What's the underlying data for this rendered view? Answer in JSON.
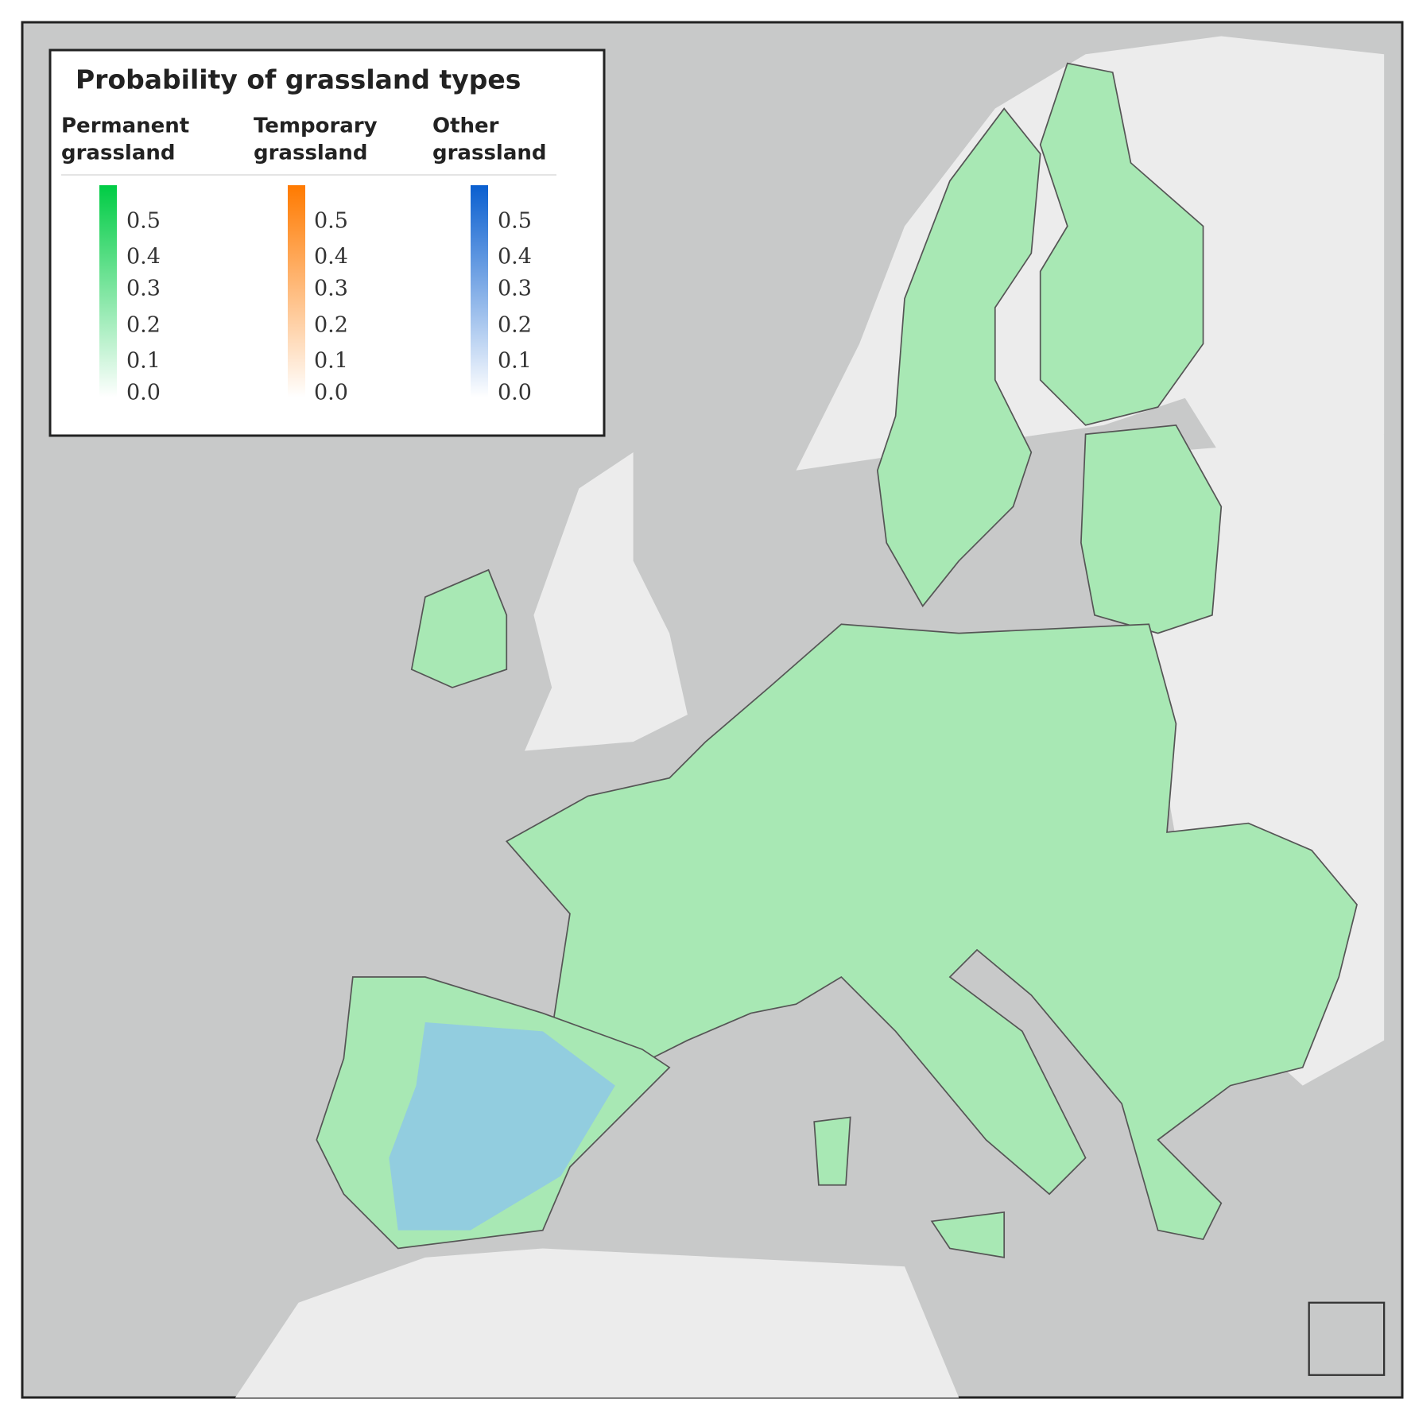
{
  "legend": {
    "title": "Probability of grassland types",
    "scales": [
      {
        "name": [
          "Permanent",
          "grassland"
        ],
        "color": "#00cc44",
        "ticks": [
          "0.5",
          "0.4",
          "0.3",
          "0.2",
          "0.1",
          "0.0"
        ]
      },
      {
        "name": [
          "Temporary",
          "grassland"
        ],
        "color": "#ff7a00",
        "ticks": [
          "0.5",
          "0.4",
          "0.3",
          "0.2",
          "0.1",
          "0.0"
        ]
      },
      {
        "name": [
          "Other",
          "grassland"
        ],
        "color": "#0a5fd0",
        "ticks": [
          "0.5",
          "0.4",
          "0.3",
          "0.2",
          "0.1",
          "0.0"
        ]
      }
    ]
  }
}
